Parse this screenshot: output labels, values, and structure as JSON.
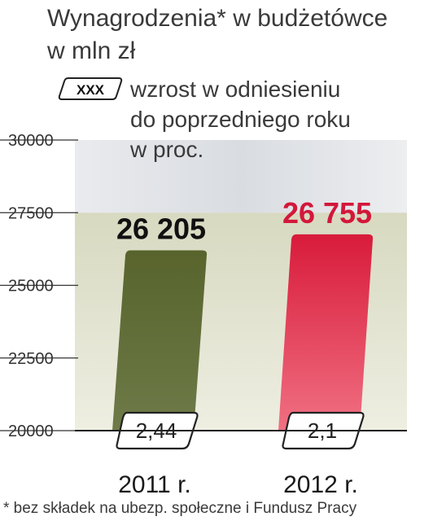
{
  "title_line1": "Wynagrodzenia* w budżetówce",
  "title_line2": "w mln zł",
  "legend": {
    "box_text": "XXX",
    "line1": "wzrost w odniesieniu",
    "line2": "do poprzedniego roku",
    "line3": "w proc."
  },
  "footnote": "* bez składek na ubezp. społeczne i Fundusz Pracy",
  "chart_data": {
    "type": "bar",
    "categories": [
      "2011 r.",
      "2012 r."
    ],
    "values": [
      26205,
      26755
    ],
    "value_labels": [
      "26 205",
      "26 755"
    ],
    "growth_labels": [
      "2,44",
      "2,1"
    ],
    "value_label_colors": [
      "#111111",
      "#d3173a"
    ],
    "bar_colors": [
      "#5d6a32",
      "#d9213f"
    ],
    "ylim": [
      20000,
      30000
    ],
    "yticks": [
      20000,
      22500,
      25000,
      27500,
      30000
    ],
    "ytick_labels": [
      "20000",
      "22500",
      "25000",
      "27500",
      "30000"
    ],
    "grid": false
  }
}
